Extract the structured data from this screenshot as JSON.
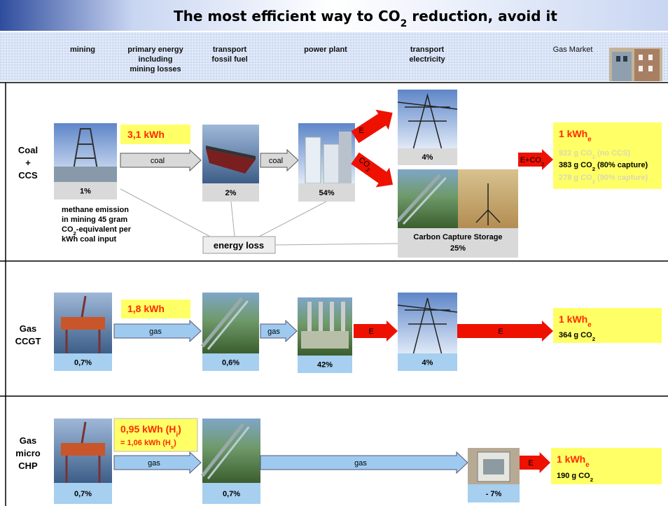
{
  "title": [
    "The most efficient way to CO",
    {
      "sub": "2"
    },
    " reduction, avoid it"
  ],
  "header": {
    "mining": "mining",
    "primary": [
      "primary energy",
      "including",
      "mining losses"
    ],
    "transport_fuel": [
      "transport",
      "fossil fuel"
    ],
    "power_plant": "power plant",
    "transport_elec": [
      "transport",
      "electricity"
    ],
    "gas_market": "Gas Market"
  },
  "rows": [
    {
      "label": [
        "Coal",
        "+",
        "CCS"
      ],
      "primary": "3,1 kWh",
      "mining_loss": "1%",
      "fuel_arrow_1": "coal",
      "transport_loss": "2%",
      "fuel_arrow_2": "coal",
      "plant_loss": "54%",
      "elec_arrow": "E",
      "co2_arrow": [
        "CO",
        {
          "sub": "2"
        }
      ],
      "grid_loss": "4%",
      "ccs": [
        "Carbon Capture Storage",
        "25%"
      ],
      "out_arrow": [
        "E+CO",
        {
          "sub": "2"
        }
      ],
      "result": [
        "1 kWh",
        {
          "sub": "e"
        }
      ],
      "emissions": [
        [
          "922  g CO",
          {
            "sub": "2"
          },
          " (no CCS)"
        ],
        [
          "383  g CO",
          {
            "sub": "2"
          },
          " (80% capture)"
        ],
        [
          "278  g CO",
          {
            "sub": "2"
          },
          " (90% capture)"
        ]
      ],
      "note": [
        "methane emission",
        "in mining 45 gram",
        [
          "CO",
          {
            "sub": "2"
          },
          "-equivalent  per"
        ],
        "kWh coal input"
      ],
      "energy_loss": "energy loss"
    },
    {
      "label": [
        "Gas",
        "CCGT"
      ],
      "primary": "1,8 kWh",
      "mining_loss": "0,7%",
      "fuel_arrow_1": "gas",
      "transport_loss": "0,6%",
      "fuel_arrow_2": "gas",
      "plant_loss": "42%",
      "elec_arrow": "E",
      "grid_loss": "4%",
      "out_arrow": "E",
      "result": [
        "1 kWh",
        {
          "sub": "e"
        }
      ],
      "emissions": [
        [
          "364 g CO",
          {
            "sub": "2"
          }
        ]
      ]
    },
    {
      "label": [
        "Gas",
        "micro",
        "CHP"
      ],
      "primary": [
        [
          "0,95 kWh (H",
          {
            "sub": "i"
          },
          ")"
        ],
        [
          "= 1,06 kWh (H",
          {
            "sub": "s"
          },
          ")"
        ]
      ],
      "mining_loss": "0,7%",
      "fuel_arrow_1": "gas",
      "transport_loss": "0,7%",
      "fuel_arrow_2": "gas",
      "plant_loss": "- 7%",
      "out_arrow": "E",
      "result": [
        "1 kWh",
        {
          "sub": "e"
        }
      ],
      "emissions": [
        [
          "190 g CO",
          {
            "sub": "2"
          }
        ]
      ]
    }
  ]
}
